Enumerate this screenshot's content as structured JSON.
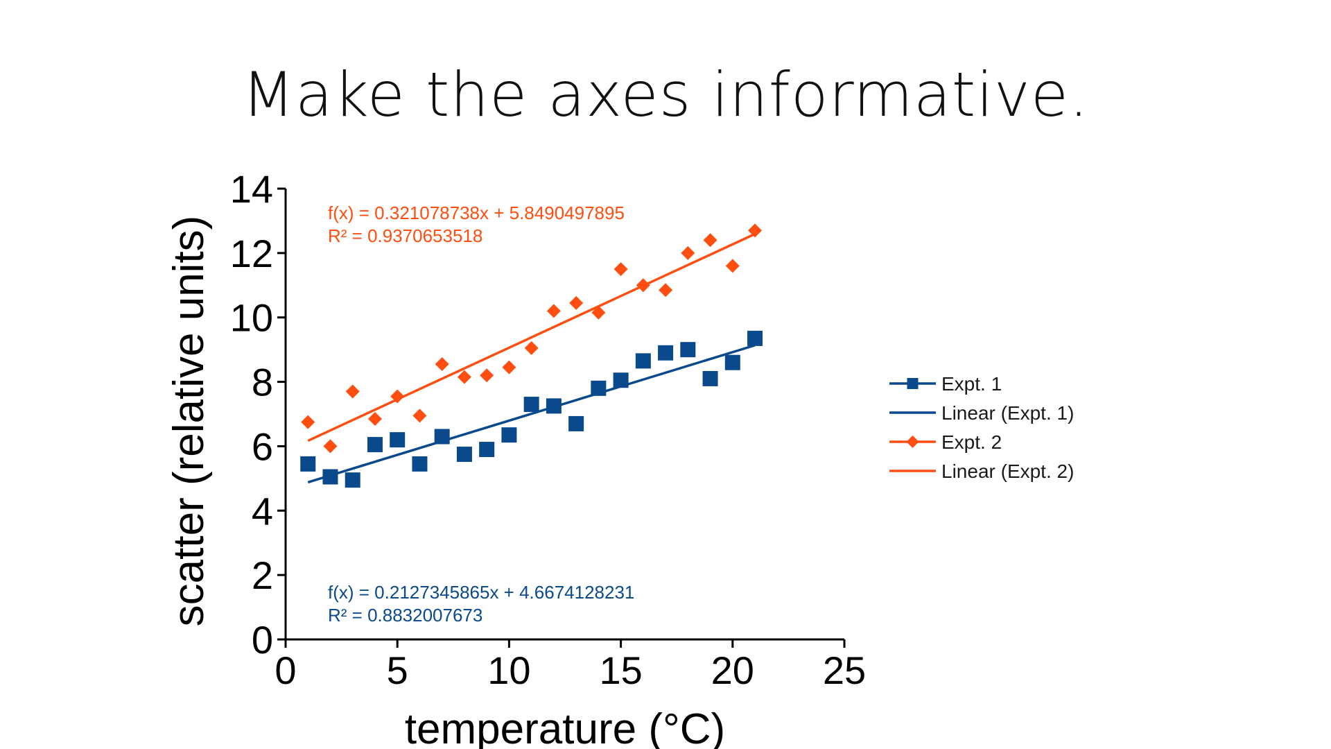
{
  "slide": {
    "title": "Make the axes informative."
  },
  "colors": {
    "expt1": "#0a4a8c",
    "expt2": "#ff4e10",
    "axis": "#000000"
  },
  "chart_data": {
    "type": "scatter",
    "xlabel": "temperature (°C)",
    "ylabel": "scatter (relative units)",
    "xlim": [
      0,
      25
    ],
    "ylim": [
      0,
      14
    ],
    "xticks": [
      0,
      5,
      10,
      15,
      20,
      25
    ],
    "yticks": [
      0,
      2,
      4,
      6,
      8,
      10,
      12,
      14
    ],
    "grid": false,
    "legend_position": "right",
    "series": [
      {
        "name": "Expt. 1",
        "marker": "square",
        "color": "#0a4a8c",
        "x": [
          1,
          2,
          3,
          4,
          5,
          6,
          7,
          8,
          9,
          10,
          11,
          12,
          13,
          14,
          15,
          16,
          17,
          18,
          19,
          20,
          21
        ],
        "y": [
          5.45,
          5.05,
          4.95,
          6.05,
          6.2,
          5.45,
          6.3,
          5.75,
          5.9,
          6.35,
          7.3,
          7.25,
          6.7,
          7.8,
          8.05,
          8.65,
          8.9,
          9.0,
          8.1,
          8.6,
          9.35
        ]
      },
      {
        "name": "Expt. 2",
        "marker": "diamond",
        "color": "#ff4e10",
        "x": [
          1,
          2,
          3,
          4,
          5,
          6,
          7,
          8,
          9,
          10,
          11,
          12,
          13,
          14,
          15,
          16,
          17,
          18,
          19,
          20,
          21
        ],
        "y": [
          6.75,
          6.0,
          7.7,
          6.85,
          7.55,
          6.95,
          8.55,
          8.15,
          8.2,
          8.45,
          9.05,
          10.2,
          10.45,
          10.15,
          11.5,
          11.0,
          10.85,
          12.0,
          12.4,
          11.6,
          12.7
        ]
      }
    ],
    "trendlines": [
      {
        "name": "Linear (Expt. 1)",
        "color": "#0a4a8c",
        "slope": 0.2127345865,
        "intercept": 4.6674128231,
        "x_range": [
          1,
          21
        ],
        "equation": "f(x) = 0.2127345865x + 4.6674128231",
        "r2": "R² = 0.8832007673"
      },
      {
        "name": "Linear (Expt. 2)",
        "color": "#ff4e10",
        "slope": 0.321078738,
        "intercept": 5.8490497895,
        "x_range": [
          1,
          21
        ],
        "equation": "f(x) = 0.321078738x + 5.8490497895",
        "r2": "R² = 0.9370653518"
      }
    ],
    "legend": [
      {
        "label": "Expt. 1",
        "color": "#0a4a8c",
        "marker": "square"
      },
      {
        "label": "Linear (Expt. 1)",
        "color": "#0a4a8c",
        "marker": "none"
      },
      {
        "label": "Expt. 2",
        "color": "#ff4e10",
        "marker": "diamond"
      },
      {
        "label": "Linear (Expt. 2)",
        "color": "#ff4e10",
        "marker": "none"
      }
    ]
  }
}
